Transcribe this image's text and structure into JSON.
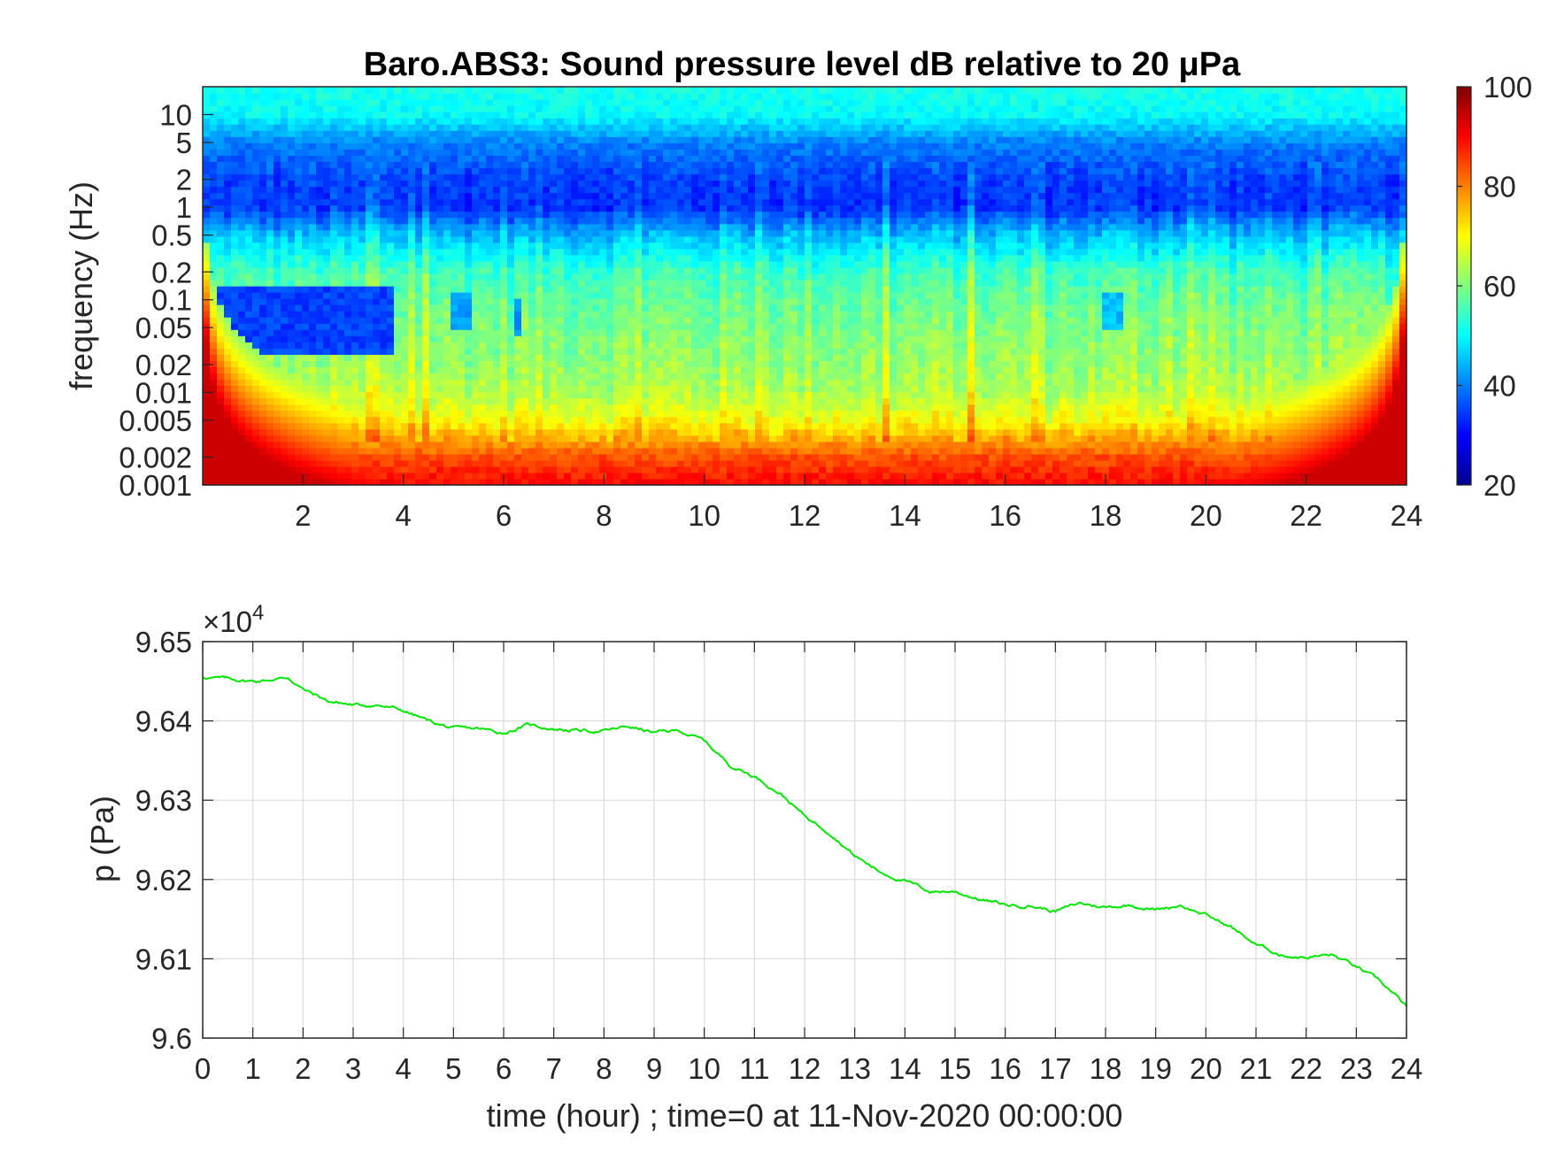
{
  "chart_data": [
    {
      "type": "heatmap",
      "title": "Baro.ABS3: Sound pressure level dB relative to 20 μPa",
      "ylabel": "frequency (Hz)",
      "xlabel": "",
      "xlim": [
        0,
        24
      ],
      "ylim": [
        0.001,
        20
      ],
      "yscale": "log",
      "x_ticks": [
        2,
        4,
        6,
        8,
        10,
        12,
        14,
        16,
        18,
        20,
        22,
        24
      ],
      "y_ticks": [
        {
          "value": 0.001,
          "label": "0.001"
        },
        {
          "value": 0.002,
          "label": "0.002"
        },
        {
          "value": 0.005,
          "label": "0.005"
        },
        {
          "value": 0.01,
          "label": "0.01"
        },
        {
          "value": 0.02,
          "label": "0.02"
        },
        {
          "value": 0.05,
          "label": "0.05"
        },
        {
          "value": 0.1,
          "label": "0.1"
        },
        {
          "value": 0.2,
          "label": "0.2"
        },
        {
          "value": 0.5,
          "label": "0.5"
        },
        {
          "value": 1,
          "label": "1"
        },
        {
          "value": 2,
          "label": "2"
        },
        {
          "value": 5,
          "label": "5"
        },
        {
          "value": 10,
          "label": "10"
        }
      ],
      "colorbar": {
        "colormap": "jet",
        "range": [
          20,
          100
        ],
        "ticks": [
          20,
          40,
          60,
          80,
          100
        ]
      },
      "grid": false,
      "level_profile_db": {
        "freq_hz": [
          0.001,
          0.002,
          0.005,
          0.01,
          0.02,
          0.05,
          0.1,
          0.2,
          0.5,
          1,
          2,
          5,
          10,
          20
        ],
        "level": [
          90,
          84,
          70,
          64,
          62,
          60,
          58,
          55,
          45,
          34,
          35,
          40,
          50,
          52
        ]
      },
      "quiet_regions": [
        {
          "t": [
            0.05,
            3.85
          ],
          "f": [
            0.025,
            0.14
          ],
          "level": 35
        },
        {
          "t": [
            5.0,
            5.3
          ],
          "f": [
            0.05,
            0.12
          ],
          "level": 42
        },
        {
          "t": [
            6.2,
            6.35
          ],
          "f": [
            0.04,
            0.11
          ],
          "level": 42
        },
        {
          "t": [
            18.0,
            18.4
          ],
          "f": [
            0.05,
            0.12
          ],
          "level": 45
        }
      ]
    },
    {
      "type": "line",
      "title": "",
      "ylabel": "p (Pa)",
      "xlabel": "time (hour) ; time=0 at 11-Nov-2020 00:00:00",
      "exponent_label": "×10",
      "exponent_power": "4",
      "xlim": [
        0,
        24
      ],
      "ylim": [
        9.6,
        9.65
      ],
      "x_ticks": [
        0,
        1,
        2,
        3,
        4,
        5,
        6,
        7,
        8,
        9,
        10,
        11,
        12,
        13,
        14,
        15,
        16,
        17,
        18,
        19,
        20,
        21,
        22,
        23,
        24
      ],
      "y_ticks": [
        {
          "value": 9.6,
          "label": "9.6"
        },
        {
          "value": 9.61,
          "label": "9.61"
        },
        {
          "value": 9.62,
          "label": "9.62"
        },
        {
          "value": 9.63,
          "label": "9.63"
        },
        {
          "value": 9.64,
          "label": "9.64"
        },
        {
          "value": 9.65,
          "label": "9.65"
        }
      ],
      "grid": true,
      "line_color": "#00e600",
      "x": [
        0,
        0.5,
        1,
        1.5,
        1.7,
        2,
        2.5,
        3,
        3.5,
        4,
        4.5,
        5,
        5.5,
        6,
        6.5,
        7,
        7.5,
        8,
        8.5,
        9,
        9.5,
        10,
        10.5,
        11,
        11.5,
        12,
        12.5,
        13,
        13.5,
        14,
        14.5,
        15,
        15.5,
        16,
        16.5,
        17,
        17.5,
        18,
        18.5,
        19,
        19.5,
        20,
        20.5,
        21,
        21.5,
        22,
        22.5,
        23,
        23.5,
        24
      ],
      "y": [
        9.6455,
        9.6453,
        9.645,
        9.6453,
        9.6455,
        9.644,
        9.6425,
        9.642,
        9.642,
        9.6413,
        9.64,
        9.639,
        9.639,
        9.6385,
        9.6395,
        9.639,
        9.6388,
        9.6387,
        9.6393,
        9.6385,
        9.6388,
        9.6375,
        9.6345,
        9.633,
        9.631,
        9.628,
        9.626,
        9.623,
        9.621,
        9.6198,
        9.6185,
        9.6185,
        9.6175,
        9.6168,
        9.6167,
        9.616,
        9.617,
        9.6165,
        9.6168,
        9.6162,
        9.6168,
        9.6155,
        9.614,
        9.6118,
        9.6105,
        9.6102,
        9.6105,
        9.609,
        9.607,
        9.604
      ]
    }
  ]
}
